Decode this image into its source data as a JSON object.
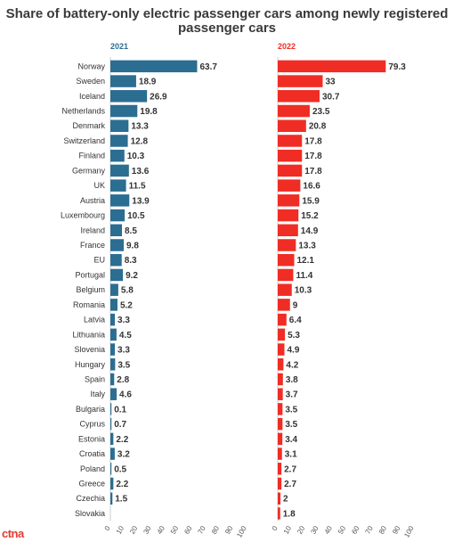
{
  "title": "Share of battery-only electric passenger cars among newly registered passenger cars",
  "logo_text": "ctna",
  "colors": {
    "y2021": "#2c6d92",
    "y2022": "#ef2d24"
  },
  "chart_data": {
    "type": "bar",
    "orientation": "horizontal",
    "title": "Share of battery-only electric passenger cars among newly registered passenger cars",
    "categories": [
      "Norway",
      "Sweden",
      "Iceland",
      "Netherlands",
      "Denmark",
      "Switzerland",
      "Finland",
      "Germany",
      "UK",
      "Austria",
      "Luxembourg",
      "Ireland",
      "France",
      "EU",
      "Portugal",
      "Belgium",
      "Romania",
      "Latvia",
      "Lithuania",
      "Slovenia",
      "Hungary",
      "Spain",
      "Italy",
      "Bulgaria",
      "Cyprus",
      "Estonia",
      "Croatia",
      "Poland",
      "Greece",
      "Czechia",
      "Slovakia"
    ],
    "series": [
      {
        "name": "2021",
        "values": [
          63.7,
          18.9,
          26.9,
          19.8,
          13.3,
          12.8,
          10.3,
          13.6,
          11.5,
          13.9,
          10.5,
          8.5,
          9.8,
          8.3,
          9.2,
          5.8,
          5.2,
          3.3,
          4.5,
          3.3,
          3.5,
          2.8,
          4.6,
          0.1,
          0.7,
          2.2,
          3.2,
          0.5,
          2.2,
          1.5,
          null
        ]
      },
      {
        "name": "2022",
        "values": [
          79.3,
          33,
          30.7,
          23.5,
          20.8,
          17.8,
          17.8,
          17.8,
          16.6,
          15.9,
          15.2,
          14.9,
          13.3,
          12.1,
          11.4,
          10.3,
          9,
          6.4,
          5.3,
          4.9,
          4.2,
          3.8,
          3.7,
          3.5,
          3.5,
          3.4,
          3.1,
          2.7,
          2.7,
          2,
          1.8
        ]
      }
    ],
    "value_labels": [
      [
        "63.7",
        "18.9",
        "26.9",
        "19.8",
        "13.3",
        "12.8",
        "10.3",
        "13.6",
        "11.5",
        "13.9",
        "10.5",
        "8.5",
        "9.8",
        "8.3",
        "9.2",
        "5.8",
        "5.2",
        "3.3",
        "4.5",
        "3.3",
        "3.5",
        "2.8",
        "4.6",
        "0.1",
        "0.7",
        "2.2",
        "3.2",
        "0.5",
        "2.2",
        "1.5",
        ""
      ],
      [
        "79.3",
        "33",
        "30.7",
        "23.5",
        "20.8",
        "17.8",
        "17.8",
        "17.8",
        "16.6",
        "15.9",
        "15.2",
        "14.9",
        "13.3",
        "12.1",
        "11.4",
        "10.3",
        "9",
        "6.4",
        "5.3",
        "4.9",
        "4.2",
        "3.8",
        "3.7",
        "3.5",
        "3.5",
        "3.4",
        "3.1",
        "2.7",
        "2.7",
        "2",
        "1.8"
      ]
    ],
    "xlim": [
      0,
      100
    ],
    "x_ticks": [
      "0",
      "10",
      "20",
      "30",
      "40",
      "50",
      "60",
      "70",
      "80",
      "90",
      "100"
    ],
    "grid": false,
    "legend": "none"
  }
}
